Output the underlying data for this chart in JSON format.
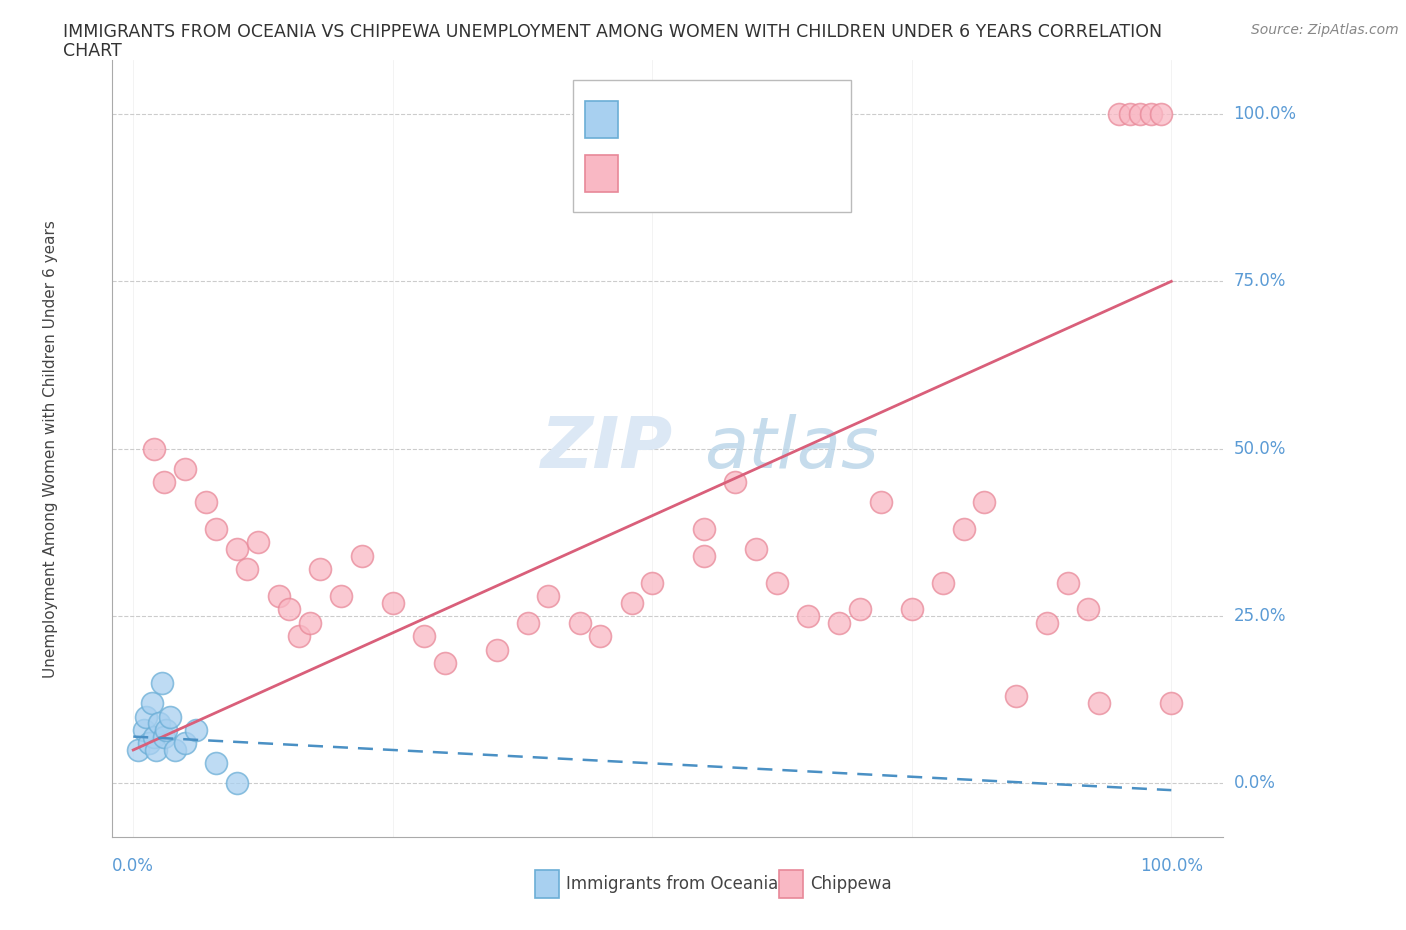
{
  "title_line1": "IMMIGRANTS FROM OCEANIA VS CHIPPEWA UNEMPLOYMENT AMONG WOMEN WITH CHILDREN UNDER 6 YEARS CORRELATION",
  "title_line2": "CHART",
  "source": "Source: ZipAtlas.com",
  "ylabel": "Unemployment Among Women with Children Under 6 years",
  "color_oceania_fill": "#a8d0f0",
  "color_oceania_edge": "#6baed6",
  "color_oceania_line": "#4a90c4",
  "color_chippewa_fill": "#f9b8c4",
  "color_chippewa_edge": "#e88898",
  "color_chippewa_line": "#d95f7a",
  "color_axis_labels": "#5b9bd5",
  "color_grid": "#cccccc",
  "background_color": "#ffffff",
  "watermark_color": "#dce8f5",
  "oceania_points": [
    [
      0.5,
      5
    ],
    [
      1.0,
      8
    ],
    [
      1.2,
      10
    ],
    [
      1.5,
      6
    ],
    [
      1.8,
      12
    ],
    [
      2.0,
      7
    ],
    [
      2.2,
      5
    ],
    [
      2.5,
      9
    ],
    [
      2.8,
      15
    ],
    [
      3.0,
      7
    ],
    [
      3.2,
      8
    ],
    [
      3.5,
      10
    ],
    [
      4.0,
      5
    ],
    [
      5.0,
      6
    ],
    [
      6.0,
      8
    ],
    [
      8.0,
      3
    ],
    [
      10.0,
      0
    ]
  ],
  "chippewa_points": [
    [
      2,
      50
    ],
    [
      3,
      45
    ],
    [
      5,
      47
    ],
    [
      7,
      42
    ],
    [
      8,
      38
    ],
    [
      10,
      35
    ],
    [
      11,
      32
    ],
    [
      12,
      36
    ],
    [
      14,
      28
    ],
    [
      15,
      26
    ],
    [
      16,
      22
    ],
    [
      17,
      24
    ],
    [
      18,
      32
    ],
    [
      20,
      28
    ],
    [
      22,
      34
    ],
    [
      25,
      27
    ],
    [
      28,
      22
    ],
    [
      30,
      18
    ],
    [
      35,
      20
    ],
    [
      38,
      24
    ],
    [
      40,
      28
    ],
    [
      43,
      24
    ],
    [
      45,
      22
    ],
    [
      48,
      27
    ],
    [
      50,
      30
    ],
    [
      55,
      38
    ],
    [
      55,
      34
    ],
    [
      58,
      45
    ],
    [
      60,
      35
    ],
    [
      62,
      30
    ],
    [
      65,
      25
    ],
    [
      68,
      24
    ],
    [
      70,
      26
    ],
    [
      72,
      42
    ],
    [
      75,
      26
    ],
    [
      78,
      30
    ],
    [
      80,
      38
    ],
    [
      82,
      42
    ],
    [
      85,
      13
    ],
    [
      88,
      24
    ],
    [
      90,
      30
    ],
    [
      92,
      26
    ],
    [
      93,
      12
    ],
    [
      95,
      100
    ],
    [
      96,
      100
    ],
    [
      97,
      100
    ],
    [
      98,
      100
    ],
    [
      99,
      100
    ],
    [
      100,
      12
    ]
  ],
  "ytick_positions": [
    0,
    25,
    50,
    75,
    100
  ],
  "ytick_labels": [
    "0.0%",
    "25.0%",
    "50.0%",
    "75.0%",
    "100.0%"
  ],
  "xtick_positions": [
    0,
    100
  ],
  "xtick_labels": [
    "0.0%",
    "100.0%"
  ],
  "xlim": [
    -2,
    105
  ],
  "ylim": [
    -8,
    108
  ]
}
